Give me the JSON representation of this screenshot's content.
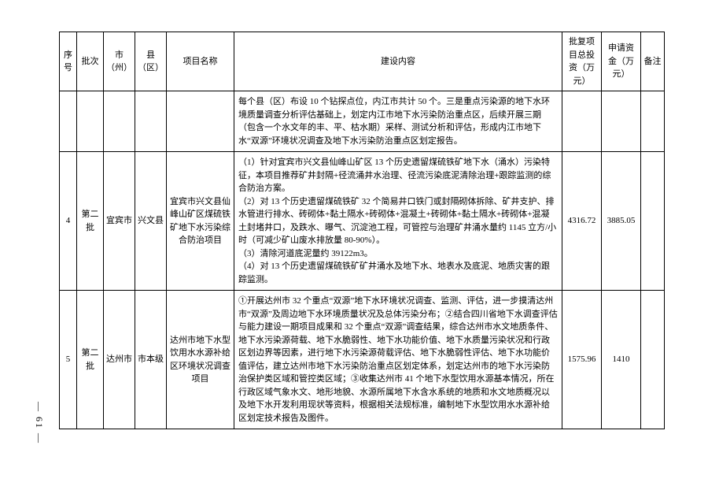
{
  "columns": {
    "idx": "序号",
    "batch": "批次",
    "city": "市（州）",
    "county": "县（区）",
    "name": "项目名称",
    "content": "建设内容",
    "inv": "批复项目总投资（万元）",
    "fund": "申请资金（万元）",
    "remark": "备注"
  },
  "carryover": {
    "content": "每个县（区）布设 10 个钻探点位，内江市共计 50 个。三是重点污染源的地下水环境质量调查分析评估基础上，划定内江市地下水污染防治重点区，后续开展三期（包含一个水文年的丰、平、枯水期）采样、测试分析和评估，形成内江市地下水“双源”环境状况调查及地下水污染防治重点区划定报告。"
  },
  "rows": [
    {
      "idx": "4",
      "batch": "第二批",
      "city": "宜宾市",
      "county": "兴文县",
      "name": "宜宾市兴文县仙峰山矿区煤硫铁矿地下水污染综合防治项目",
      "content": "（1）针对宜宾市兴文县仙峰山矿区 13 个历史遗留煤硫铁矿地下水（涌水）污染特征，本项目推荐矿井封隔+径流涌井水治理、径流污染底泥清除治理+跟踪监测的综合防治方案。\n（2）对 13 个历史遗留煤硫铁矿 32 个简易井口铁门或封隔砌体拆除、矿井支护、排水管进行排水、砖砌体+黏土隔水+砖砌体+混凝土+砖砌体+黏土隔水+砖砌体+混凝土封堵井口，及跌水、曝气、沉淀池工程，可管控与治理矿井涌水量约 1145 立方/小时（可减少矿山废水排放量 80-90%）。\n（3）清除河道底泥量约 39122m3。\n（4）对 13 个历史遗留煤硫铁矿矿井涌水及地下水、地表水及底泥、地质灾害的跟踪监测。",
      "inv": "4316.72",
      "fund": "3885.05",
      "remark": ""
    },
    {
      "idx": "5",
      "batch": "第二批",
      "city": "达州市",
      "county": "市本级",
      "name": "达州市地下水型饮用水水源补给区环境状况调查项目",
      "content": "①开展达州市 32 个重点“双源”地下水环境状况调查、监测、评估，进一步摸清达州市“双源”及周边地下水环境质量状况及总体污染分布；②结合四川省地下水调查评估与能力建设一期项目成果和 32 个重点“双源”调查结果，综合达州市水文地质条件、地下水污染源荷载、地下水脆弱性、地下水功能价值、地下水质量污染状况和行政区划边界等因素，进行地下水污染源荷载评估、地下水脆弱性评估、地下水功能价值评估，建立达州市地下水污染防治重点区划定体系，划定达州市的地下水污染防治保护类区域和管控类区域；③收集达州市 41 个地下水型饮用水源基本情况，所在行政区域气象水文、地形地貌、水源所属地下水含水系统的地质和水文地质概况以及地下水开发利用现状等资料，根据相关法规标准，编制地下水型饮用水水源补给区划定技术报告及图件。",
      "inv": "1575.96",
      "fund": "1410",
      "remark": ""
    }
  ],
  "page_num": "— 61 —"
}
